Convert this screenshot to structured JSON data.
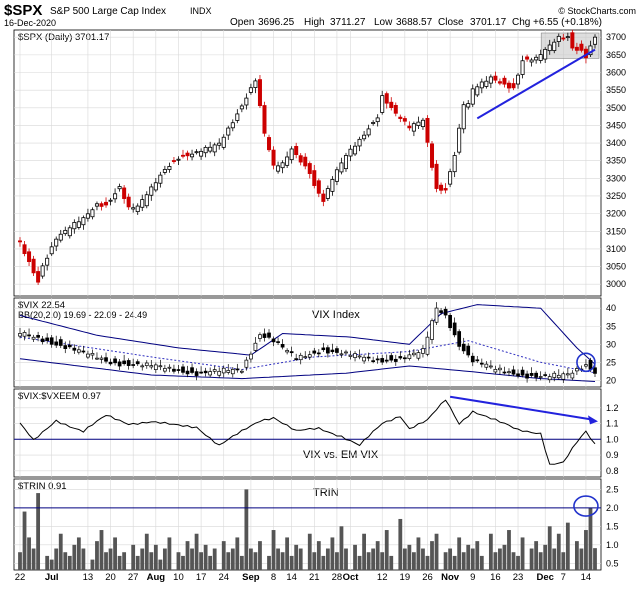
{
  "header": {
    "symbol": "$SPX",
    "name": "S&P 500 Large Cap Index",
    "exchange": "INDX",
    "watermark": "© StockCharts.com",
    "date": "16-Dec-2020",
    "open_label": "Open",
    "open": "3696.25",
    "high_label": "High",
    "high": "3711.27",
    "low_label": "Low",
    "low": "3688.57",
    "close_label": "Close",
    "close": "3701.17",
    "chg_label": "Chg",
    "chg": "+6.55 (+0.18%)"
  },
  "colors": {
    "up": "#000000",
    "down": "#cc0000",
    "trendline": "#2222dd",
    "bands": "#000080",
    "bands_mid": "#3030c0",
    "vix_line": "#000000",
    "trin_bar": "#555555",
    "reference_line": "#000080",
    "highlight_box": "#c8c8c8",
    "circle": "#2233cc"
  },
  "chart_data": [
    {
      "type": "candlestick",
      "panel": "price",
      "title": "$SPX (Daily) 3701.17",
      "ylim": [
        2975,
        3712
      ],
      "yticks": [
        3000,
        3050,
        3100,
        3150,
        3200,
        3250,
        3300,
        3350,
        3400,
        3450,
        3500,
        3550,
        3600,
        3650,
        3700
      ],
      "x_start": "2020-06-22",
      "x_end": "2020-12-16",
      "series": [
        {
          "name": "SPX",
          "anchors": [
            [
              "2020-06-22",
              3117
            ],
            [
              "2020-06-26",
              3009
            ],
            [
              "2020-06-29",
              3053
            ],
            [
              "2020-07-02",
              3130
            ],
            [
              "2020-07-08",
              3169
            ],
            [
              "2020-07-10",
              3185
            ],
            [
              "2020-07-15",
              3227
            ],
            [
              "2020-07-17",
              3225
            ],
            [
              "2020-07-22",
              3276
            ],
            [
              "2020-07-24",
              3215
            ],
            [
              "2020-07-28",
              3218
            ],
            [
              "2020-07-31",
              3271
            ],
            [
              "2020-08-05",
              3327
            ],
            [
              "2020-08-10",
              3360
            ],
            [
              "2020-08-14",
              3372
            ],
            [
              "2020-08-21",
              3397
            ],
            [
              "2020-08-27",
              3484
            ],
            [
              "2020-09-02",
              3580
            ],
            [
              "2020-09-04",
              3427
            ],
            [
              "2020-09-08",
              3332
            ],
            [
              "2020-09-10",
              3339
            ],
            [
              "2020-09-14",
              3383
            ],
            [
              "2020-09-18",
              3319
            ],
            [
              "2020-09-21",
              3281
            ],
            [
              "2020-09-23",
              3237
            ],
            [
              "2020-09-25",
              3298
            ],
            [
              "2020-09-30",
              3363
            ],
            [
              "2020-10-05",
              3408
            ],
            [
              "2020-10-09",
              3477
            ],
            [
              "2020-10-12",
              3534
            ],
            [
              "2020-10-15",
              3483
            ],
            [
              "2020-10-20",
              3443
            ],
            [
              "2020-10-23",
              3465
            ],
            [
              "2020-10-26",
              3400
            ],
            [
              "2020-10-28",
              3271
            ],
            [
              "2020-10-30",
              3270
            ],
            [
              "2020-11-03",
              3369
            ],
            [
              "2020-11-05",
              3510
            ],
            [
              "2020-11-06",
              3509
            ],
            [
              "2020-11-09",
              3550
            ],
            [
              "2020-11-13",
              3585
            ],
            [
              "2020-11-18",
              3567
            ],
            [
              "2020-11-20",
              3557
            ],
            [
              "2020-11-24",
              3635
            ],
            [
              "2020-11-27",
              3638
            ],
            [
              "2020-12-01",
              3662
            ],
            [
              "2020-12-04",
              3699
            ],
            [
              "2020-12-08",
              3702
            ],
            [
              "2020-12-09",
              3672
            ],
            [
              "2020-12-11",
              3663
            ],
            [
              "2020-12-14",
              3647
            ],
            [
              "2020-12-16",
              3701
            ]
          ]
        }
      ],
      "annotations": [
        {
          "type": "trendline",
          "from": [
            "2020-11-10",
            3470
          ],
          "to": [
            "2020-12-16",
            3665
          ]
        },
        {
          "type": "box",
          "from": [
            "2020-12-01",
            3640
          ],
          "to": [
            "2020-12-16",
            3712
          ]
        }
      ]
    },
    {
      "type": "candlestick",
      "panel": "vix",
      "title": "$VIX 22.54",
      "label": "VIX Index",
      "indicator": "BB(20,2.0) 19.69 - 22.09 - 24.49",
      "ylim": [
        19,
        42
      ],
      "yticks": [
        20,
        25,
        30,
        35,
        40
      ],
      "series": [
        {
          "name": "VIX",
          "anchors": [
            [
              "2020-06-22",
              33
            ],
            [
              "2020-06-30",
              31
            ],
            [
              "2020-07-08",
              28.5
            ],
            [
              "2020-07-20",
              25
            ],
            [
              "2020-07-31",
              24
            ],
            [
              "2020-08-14",
              22
            ],
            [
              "2020-08-28",
              23
            ],
            [
              "2020-09-03",
              33
            ],
            [
              "2020-09-08",
              31
            ],
            [
              "2020-09-15",
              26
            ],
            [
              "2020-09-23",
              28.5
            ],
            [
              "2020-10-01",
              27
            ],
            [
              "2020-10-09",
              25.5
            ],
            [
              "2020-10-16",
              26
            ],
            [
              "2020-10-23",
              28
            ],
            [
              "2020-10-28",
              40
            ],
            [
              "2020-10-30",
              38
            ],
            [
              "2020-11-04",
              30
            ],
            [
              "2020-11-09",
              25.5
            ],
            [
              "2020-11-16",
              23
            ],
            [
              "2020-11-24",
              21.5
            ],
            [
              "2020-12-01",
              21
            ],
            [
              "2020-12-08",
              21.5
            ],
            [
              "2020-12-14",
              24.5
            ],
            [
              "2020-12-16",
              22.5
            ]
          ]
        },
        {
          "name": "BB upper",
          "anchors": [
            [
              "2020-06-22",
              38
            ],
            [
              "2020-07-15",
              32.5
            ],
            [
              "2020-08-10",
              29
            ],
            [
              "2020-09-01",
              27
            ],
            [
              "2020-09-10",
              33
            ],
            [
              "2020-10-01",
              32
            ],
            [
              "2020-10-20",
              30
            ],
            [
              "2020-10-29",
              38.5
            ],
            [
              "2020-11-10",
              41
            ],
            [
              "2020-11-30",
              40
            ],
            [
              "2020-12-10",
              29
            ],
            [
              "2020-12-16",
              24.5
            ]
          ]
        },
        {
          "name": "BB mid",
          "anchors": [
            [
              "2020-06-22",
              32
            ],
            [
              "2020-07-31",
              26.5
            ],
            [
              "2020-08-28",
              23
            ],
            [
              "2020-09-20",
              26.5
            ],
            [
              "2020-10-20",
              28
            ],
            [
              "2020-11-06",
              31
            ],
            [
              "2020-11-30",
              25
            ],
            [
              "2020-12-16",
              22.1
            ]
          ]
        },
        {
          "name": "BB lower",
          "anchors": [
            [
              "2020-06-22",
              26
            ],
            [
              "2020-07-31",
              21.5
            ],
            [
              "2020-08-28",
              20.5
            ],
            [
              "2020-09-30",
              22
            ],
            [
              "2020-10-20",
              24
            ],
            [
              "2020-11-06",
              22.5
            ],
            [
              "2020-11-30",
              20.5
            ],
            [
              "2020-12-16",
              19.7
            ]
          ]
        }
      ],
      "annotations": [
        {
          "type": "circle",
          "at": [
            "2020-12-14",
            25
          ]
        }
      ]
    },
    {
      "type": "line",
      "panel": "vix_ratio",
      "title": "$VIX:$VXEEM 0.97",
      "label": "VIX vs. EM VIX",
      "ylim": [
        0.78,
        1.3
      ],
      "yticks": [
        0.8,
        0.9,
        1.0,
        1.1,
        1.2
      ],
      "reference_line": 1.0,
      "series": [
        {
          "name": "VIX:VXEEM",
          "anchors": [
            [
              "2020-06-22",
              1.1
            ],
            [
              "2020-06-25",
              0.99
            ],
            [
              "2020-07-02",
              1.12
            ],
            [
              "2020-07-10",
              1.05
            ],
            [
              "2020-07-17",
              1.15
            ],
            [
              "2020-07-24",
              1.1
            ],
            [
              "2020-07-31",
              1.11
            ],
            [
              "2020-08-07",
              1.09
            ],
            [
              "2020-08-14",
              1.08
            ],
            [
              "2020-08-21",
              0.96
            ],
            [
              "2020-08-28",
              1.05
            ],
            [
              "2020-09-03",
              1.12
            ],
            [
              "2020-09-08",
              1.14
            ],
            [
              "2020-09-15",
              1.05
            ],
            [
              "2020-09-22",
              1.07
            ],
            [
              "2020-09-29",
              1.02
            ],
            [
              "2020-10-05",
              0.96
            ],
            [
              "2020-10-12",
              1.1
            ],
            [
              "2020-10-16",
              1.15
            ],
            [
              "2020-10-20",
              1.07
            ],
            [
              "2020-10-26",
              1.12
            ],
            [
              "2020-10-30",
              1.25
            ],
            [
              "2020-11-04",
              1.1
            ],
            [
              "2020-11-09",
              1.18
            ],
            [
              "2020-11-16",
              1.12
            ],
            [
              "2020-11-23",
              1.06
            ],
            [
              "2020-11-30",
              1.04
            ],
            [
              "2020-12-02",
              0.84
            ],
            [
              "2020-12-07",
              0.85
            ],
            [
              "2020-12-10",
              0.98
            ],
            [
              "2020-12-14",
              1.05
            ],
            [
              "2020-12-16",
              0.97
            ]
          ]
        }
      ],
      "annotations": [
        {
          "type": "arrow",
          "from": [
            "2020-11-02",
            1.27
          ],
          "to": [
            "2020-12-16",
            1.12
          ]
        }
      ]
    },
    {
      "type": "bar",
      "panel": "trin",
      "title": "$TRIN 0.91",
      "label": "TRIN",
      "ylim": [
        0.4,
        2.7
      ],
      "yticks": [
        0.5,
        1.0,
        1.5,
        2.0,
        2.5
      ],
      "reference_line": 2.0,
      "series": [
        {
          "name": "TRIN",
          "values": [
            0.8,
            1.9,
            1.2,
            0.9,
            2.4,
            0.7,
            0.6,
            0.9,
            1.3,
            0.8,
            0.7,
            1.0,
            1.2,
            0.9,
            0.6,
            1.1,
            1.4,
            0.8,
            0.9,
            1.2,
            0.7,
            0.8,
            1.0,
            0.7,
            0.9,
            1.3,
            0.8,
            1.0,
            0.6,
            0.9,
            1.2,
            0.8,
            0.7,
            1.1,
            0.9,
            1.3,
            0.8,
            1.0,
            0.7,
            0.9,
            1.1,
            0.8,
            0.9,
            1.2,
            0.7,
            2.5,
            0.9,
            0.8,
            1.1,
            0.7,
            1.4,
            0.9,
            0.8,
            1.2,
            0.7,
            1.0,
            0.9,
            1.3,
            0.8,
            1.1,
            0.7,
            0.9,
            1.2,
            0.8,
            1.5,
            0.9,
            1.0,
            0.7,
            1.3,
            0.8,
            0.9,
            1.1,
            0.8,
            1.4,
            0.7,
            1.7,
            0.9,
            1.0,
            0.8,
            1.2,
            0.9,
            0.7,
            1.1,
            1.3,
            0.8,
            0.9,
            0.7,
            1.2,
            0.8,
            1.0,
            0.9,
            1.1,
            0.7,
            1.3,
            0.8,
            0.9,
            1.0,
            1.4,
            0.8,
            0.7,
            1.2,
            0.9,
            1.1,
            0.8,
            1.0,
            1.5,
            0.9,
            1.3,
            0.8,
            1.6,
            1.1,
            0.9,
            1.4,
            2.0,
            0.91
          ]
        }
      ],
      "annotations": [
        {
          "type": "circle",
          "at": [
            "2020-12-14",
            2.05
          ]
        }
      ]
    }
  ],
  "x_axis": {
    "labels": [
      {
        "date": "2020-06-22",
        "text": "22",
        "bold": false
      },
      {
        "date": "2020-07-01",
        "text": "Jul",
        "bold": true
      },
      {
        "date": "2020-07-13",
        "text": "13",
        "bold": false
      },
      {
        "date": "2020-07-20",
        "text": "20",
        "bold": false
      },
      {
        "date": "2020-07-27",
        "text": "27",
        "bold": false
      },
      {
        "date": "2020-08-03",
        "text": "Aug",
        "bold": true
      },
      {
        "date": "2020-08-10",
        "text": "10",
        "bold": false
      },
      {
        "date": "2020-08-17",
        "text": "17",
        "bold": false
      },
      {
        "date": "2020-08-24",
        "text": "24",
        "bold": false
      },
      {
        "date": "2020-09-01",
        "text": "Sep",
        "bold": true
      },
      {
        "date": "2020-09-08",
        "text": "8",
        "bold": false
      },
      {
        "date": "2020-09-14",
        "text": "14",
        "bold": false
      },
      {
        "date": "2020-09-21",
        "text": "21",
        "bold": false
      },
      {
        "date": "2020-09-28",
        "text": "28",
        "bold": false
      },
      {
        "date": "2020-10-01",
        "text": "Oct",
        "bold": true
      },
      {
        "date": "2020-10-12",
        "text": "12",
        "bold": false
      },
      {
        "date": "2020-10-19",
        "text": "19",
        "bold": false
      },
      {
        "date": "2020-10-26",
        "text": "26",
        "bold": false
      },
      {
        "date": "2020-11-02",
        "text": "Nov",
        "bold": true
      },
      {
        "date": "2020-11-09",
        "text": "9",
        "bold": false
      },
      {
        "date": "2020-11-16",
        "text": "16",
        "bold": false
      },
      {
        "date": "2020-11-23",
        "text": "23",
        "bold": false
      },
      {
        "date": "2020-12-01",
        "text": "Dec",
        "bold": true
      },
      {
        "date": "2020-12-07",
        "text": "7",
        "bold": false
      },
      {
        "date": "2020-12-14",
        "text": "14",
        "bold": false
      }
    ]
  }
}
